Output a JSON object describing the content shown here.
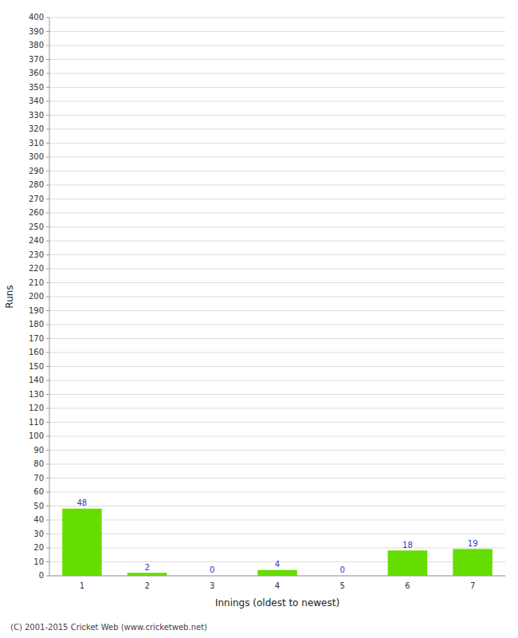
{
  "chart_data": {
    "type": "bar",
    "categories": [
      "1",
      "2",
      "3",
      "4",
      "5",
      "6",
      "7"
    ],
    "values": [
      48,
      2,
      0,
      4,
      0,
      18,
      19
    ],
    "color": "#66dd00",
    "xlabel": "Innings (oldest to newest)",
    "ylabel": "Runs",
    "ylim": [
      0,
      400
    ],
    "yticks": [
      0,
      10,
      20,
      30,
      40,
      50,
      60,
      70,
      80,
      90,
      100,
      110,
      120,
      130,
      140,
      150,
      160,
      170,
      180,
      190,
      200,
      210,
      220,
      230,
      240,
      250,
      260,
      270,
      280,
      290,
      300,
      310,
      320,
      330,
      340,
      350,
      360,
      370,
      380,
      390,
      400
    ],
    "grid": true,
    "data_labels": true,
    "annotations": [
      "(C) 2001-2015 Cricket Web (www.cricketweb.net)"
    ]
  }
}
